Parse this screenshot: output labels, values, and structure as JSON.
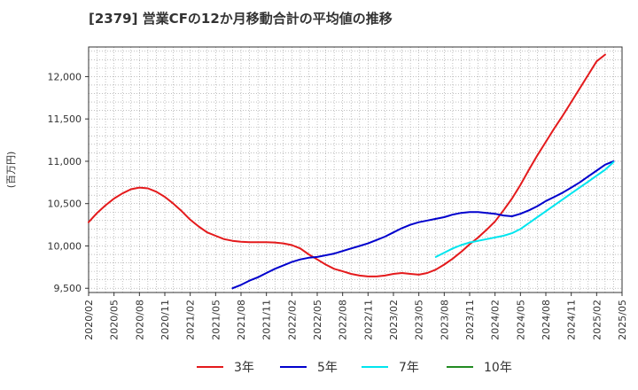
{
  "chart_data": {
    "type": "line",
    "title": "[2379]  営業CFの12か月移動合計の平均値の推移",
    "ylabel": "(百万円)",
    "xlabel": "",
    "ylim": [
      9450,
      12350
    ],
    "yticks": [
      9500,
      10000,
      10500,
      11000,
      11500,
      12000
    ],
    "ytick_labels": [
      "9,500",
      "10,000",
      "10,500",
      "11,000",
      "11,500",
      "12,000"
    ],
    "xticks": [
      "2020/02",
      "2020/05",
      "2020/08",
      "2020/11",
      "2021/02",
      "2021/05",
      "2021/08",
      "2021/11",
      "2022/02",
      "2022/05",
      "2022/08",
      "2022/11",
      "2023/02",
      "2023/05",
      "2023/08",
      "2023/11",
      "2024/02",
      "2024/05",
      "2024/08",
      "2024/11",
      "2025/02",
      "2025/05"
    ],
    "x_start": "2020/02",
    "x_end": "2025/05",
    "grid": true,
    "legend_position": "bottom",
    "series": [
      {
        "name": "3年",
        "color": "#e41a1c",
        "points": [
          [
            "2020/02",
            10280
          ],
          [
            "2020/03",
            10390
          ],
          [
            "2020/04",
            10480
          ],
          [
            "2020/05",
            10560
          ],
          [
            "2020/06",
            10620
          ],
          [
            "2020/07",
            10670
          ],
          [
            "2020/08",
            10690
          ],
          [
            "2020/09",
            10680
          ],
          [
            "2020/10",
            10640
          ],
          [
            "2020/11",
            10580
          ],
          [
            "2020/12",
            10500
          ],
          [
            "2021/01",
            10410
          ],
          [
            "2021/02",
            10310
          ],
          [
            "2021/03",
            10230
          ],
          [
            "2021/04",
            10160
          ],
          [
            "2021/05",
            10120
          ],
          [
            "2021/06",
            10080
          ],
          [
            "2021/07",
            10060
          ],
          [
            "2021/08",
            10050
          ],
          [
            "2021/09",
            10045
          ],
          [
            "2021/10",
            10045
          ],
          [
            "2021/11",
            10045
          ],
          [
            "2021/12",
            10040
          ],
          [
            "2022/01",
            10030
          ],
          [
            "2022/02",
            10010
          ],
          [
            "2022/03",
            9970
          ],
          [
            "2022/04",
            9900
          ],
          [
            "2022/05",
            9840
          ],
          [
            "2022/06",
            9780
          ],
          [
            "2022/07",
            9730
          ],
          [
            "2022/08",
            9700
          ],
          [
            "2022/09",
            9670
          ],
          [
            "2022/10",
            9650
          ],
          [
            "2022/11",
            9640
          ],
          [
            "2022/12",
            9640
          ],
          [
            "2023/01",
            9650
          ],
          [
            "2023/02",
            9670
          ],
          [
            "2023/03",
            9680
          ],
          [
            "2023/04",
            9670
          ],
          [
            "2023/05",
            9660
          ],
          [
            "2023/06",
            9680
          ],
          [
            "2023/07",
            9720
          ],
          [
            "2023/08",
            9780
          ],
          [
            "2023/09",
            9850
          ],
          [
            "2023/10",
            9930
          ],
          [
            "2023/11",
            10020
          ],
          [
            "2023/12",
            10100
          ],
          [
            "2024/01",
            10190
          ],
          [
            "2024/02",
            10290
          ],
          [
            "2024/03",
            10420
          ],
          [
            "2024/04",
            10560
          ],
          [
            "2024/05",
            10720
          ],
          [
            "2024/06",
            10900
          ],
          [
            "2024/07",
            11070
          ],
          [
            "2024/08",
            11230
          ],
          [
            "2024/09",
            11390
          ],
          [
            "2024/10",
            11540
          ],
          [
            "2024/11",
            11700
          ],
          [
            "2024/12",
            11860
          ],
          [
            "2025/01",
            12020
          ],
          [
            "2025/02",
            12180
          ],
          [
            "2025/03",
            12260
          ]
        ]
      },
      {
        "name": "5年",
        "color": "#0000cd",
        "points": [
          [
            "2021/07",
            9500
          ],
          [
            "2021/08",
            9540
          ],
          [
            "2021/09",
            9590
          ],
          [
            "2021/10",
            9630
          ],
          [
            "2021/11",
            9680
          ],
          [
            "2021/12",
            9730
          ],
          [
            "2022/01",
            9770
          ],
          [
            "2022/02",
            9810
          ],
          [
            "2022/03",
            9840
          ],
          [
            "2022/04",
            9860
          ],
          [
            "2022/05",
            9870
          ],
          [
            "2022/06",
            9890
          ],
          [
            "2022/07",
            9910
          ],
          [
            "2022/08",
            9940
          ],
          [
            "2022/09",
            9970
          ],
          [
            "2022/10",
            10000
          ],
          [
            "2022/11",
            10030
          ],
          [
            "2022/12",
            10070
          ],
          [
            "2023/01",
            10110
          ],
          [
            "2023/02",
            10160
          ],
          [
            "2023/03",
            10210
          ],
          [
            "2023/04",
            10250
          ],
          [
            "2023/05",
            10280
          ],
          [
            "2023/06",
            10300
          ],
          [
            "2023/07",
            10320
          ],
          [
            "2023/08",
            10340
          ],
          [
            "2023/09",
            10370
          ],
          [
            "2023/10",
            10390
          ],
          [
            "2023/11",
            10400
          ],
          [
            "2023/12",
            10400
          ],
          [
            "2024/01",
            10390
          ],
          [
            "2024/02",
            10380
          ],
          [
            "2024/03",
            10360
          ],
          [
            "2024/04",
            10350
          ],
          [
            "2024/05",
            10380
          ],
          [
            "2024/06",
            10420
          ],
          [
            "2024/07",
            10470
          ],
          [
            "2024/08",
            10530
          ],
          [
            "2024/09",
            10580
          ],
          [
            "2024/10",
            10630
          ],
          [
            "2024/11",
            10690
          ],
          [
            "2024/12",
            10750
          ],
          [
            "2025/01",
            10820
          ],
          [
            "2025/02",
            10890
          ],
          [
            "2025/03",
            10960
          ],
          [
            "2025/04",
            11000
          ]
        ]
      },
      {
        "name": "7年",
        "color": "#00e5ee",
        "points": [
          [
            "2023/07",
            9870
          ],
          [
            "2023/08",
            9920
          ],
          [
            "2023/09",
            9970
          ],
          [
            "2023/10",
            10010
          ],
          [
            "2023/11",
            10040
          ],
          [
            "2023/12",
            10060
          ],
          [
            "2024/01",
            10080
          ],
          [
            "2024/02",
            10100
          ],
          [
            "2024/03",
            10120
          ],
          [
            "2024/04",
            10150
          ],
          [
            "2024/05",
            10200
          ],
          [
            "2024/06",
            10270
          ],
          [
            "2024/07",
            10340
          ],
          [
            "2024/08",
            10410
          ],
          [
            "2024/09",
            10480
          ],
          [
            "2024/10",
            10550
          ],
          [
            "2024/11",
            10620
          ],
          [
            "2024/12",
            10690
          ],
          [
            "2025/01",
            10760
          ],
          [
            "2025/02",
            10830
          ],
          [
            "2025/03",
            10900
          ],
          [
            "2025/04",
            10990
          ]
        ]
      },
      {
        "name": "10年",
        "color": "#228b22",
        "points": []
      }
    ]
  }
}
